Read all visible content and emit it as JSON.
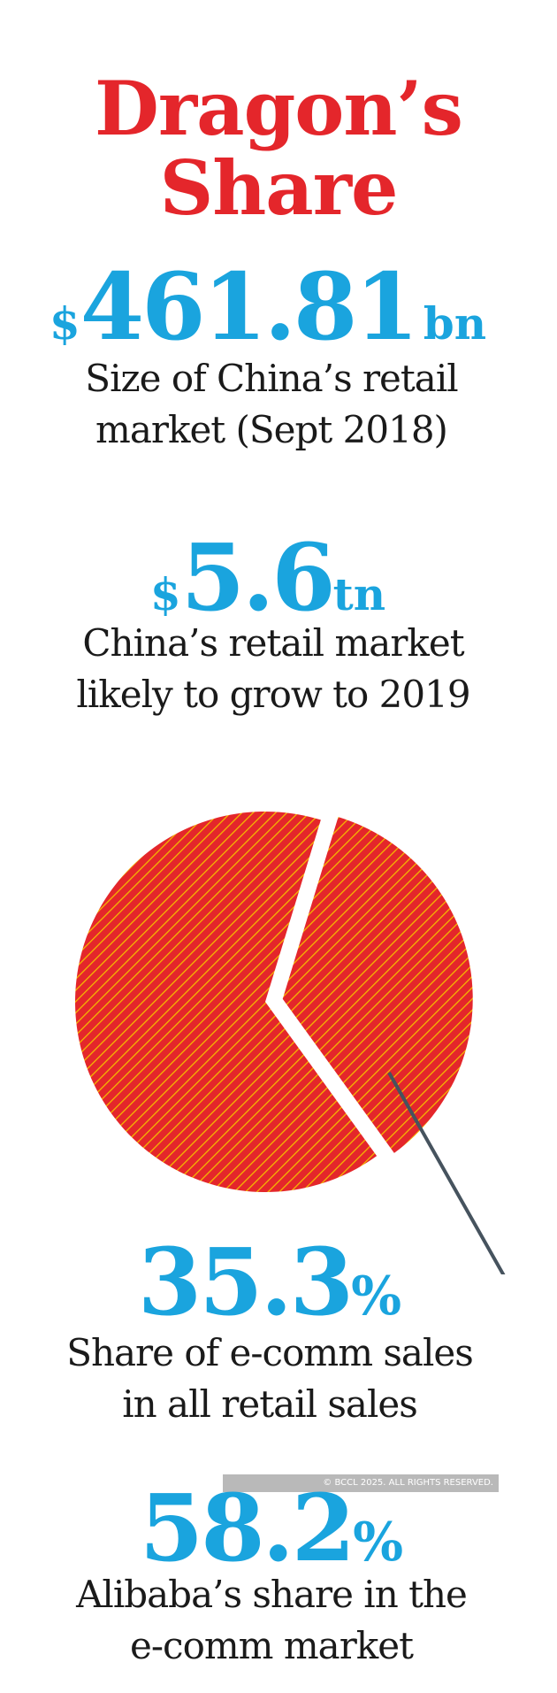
{
  "title_line1": "Dragon’s",
  "title_line2": "Share",
  "stat1": {
    "currency": "$",
    "number": "461.81",
    "unit": "bn",
    "caption_line1": "Size of China’s retail",
    "caption_line2": "market (Sept 2018)"
  },
  "stat2": {
    "currency": "$",
    "number": "5.6",
    "unit": "tn",
    "caption_line1": "China’s retail market",
    "caption_line2": "likely to grow to 2019"
  },
  "stat3": {
    "number": "35.3",
    "unit": "%",
    "caption_line1": "Share of e-comm sales",
    "caption_line2": "in all retail sales"
  },
  "stat4": {
    "number": "58.2",
    "unit": "%",
    "caption_line1": "Alibaba’s share in the",
    "caption_line2": "e-comm market"
  },
  "copyright": "© BCCL 2025. ALL RIGHTS RESERVED.",
  "colors": {
    "title": "#e4262b",
    "figure": "#1aa4de",
    "pie_fill": "#e4262b",
    "pie_hatch": "#f5b800",
    "leader": "#46535e"
  },
  "chart_data": {
    "type": "pie",
    "slices": [
      {
        "label": "Share of e-comm sales in all retail sales",
        "value": 35.3,
        "exploded": true
      },
      {
        "label": "",
        "value": 64.7
      }
    ]
  }
}
